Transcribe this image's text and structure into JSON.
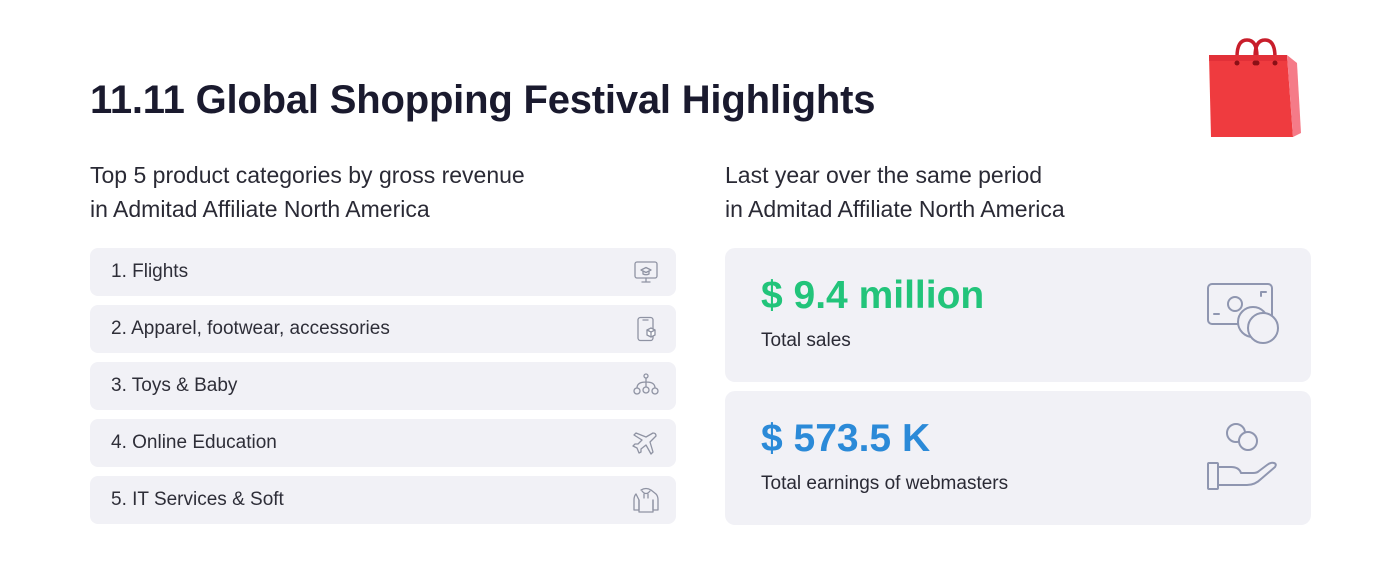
{
  "header": {
    "title": "11.11 Global Shopping Festival Highlights"
  },
  "left": {
    "subtitle_line1": "Top 5 product categories by gross revenue",
    "subtitle_line2": "in Admitad Affiliate North America",
    "items": [
      {
        "label": "1. Flights",
        "icon": "presentation-board-icon"
      },
      {
        "label": "2. Apparel, footwear, accessories",
        "icon": "phone-box-icon"
      },
      {
        "label": "3. Toys & Baby",
        "icon": "baby-mobile-icon"
      },
      {
        "label": "4. Online Education",
        "icon": "airplane-icon"
      },
      {
        "label": "5. IT Services & Soft",
        "icon": "hoodie-icon"
      }
    ]
  },
  "right": {
    "subtitle_line1": "Last year over the same period",
    "subtitle_line2": "in Admitad Affiliate North America",
    "stats": [
      {
        "value": "$ 9.4 million",
        "caption": "Total sales",
        "color": "#22c47a",
        "icon": "banknote-coins-icon"
      },
      {
        "value": "$ 573.5 K",
        "caption": "Total earnings of webmasters",
        "color": "#2b8ad8",
        "icon": "hand-coins-icon"
      }
    ]
  },
  "colors": {
    "accent_green": "#22c47a",
    "accent_blue": "#2b8ad8",
    "card_bg": "#f1f1f6",
    "bag_red": "#e8393c"
  }
}
